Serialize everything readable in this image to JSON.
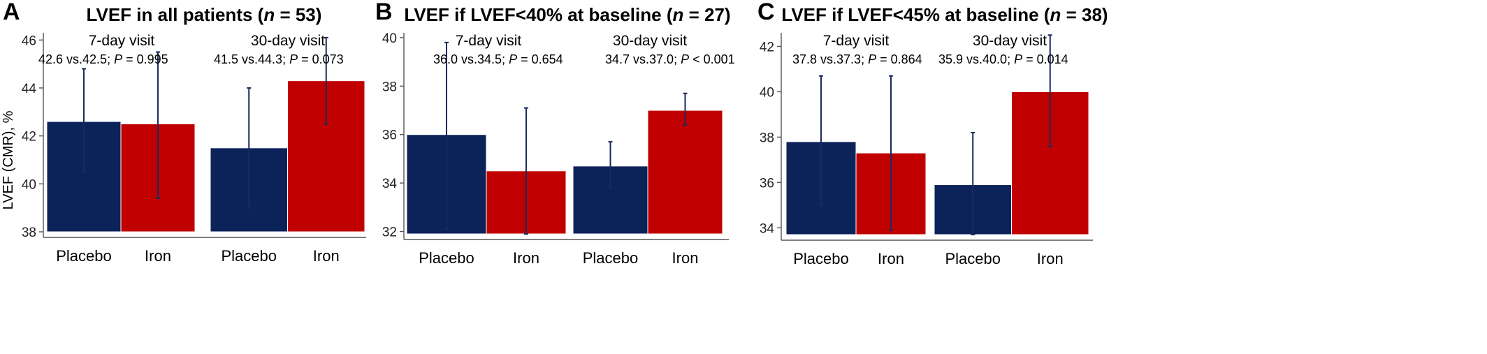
{
  "chart_data": [
    {
      "type": "bar",
      "panel_letter": "A",
      "title": {
        "prefix": "LVEF in all patients (",
        "italic": "n",
        "suffix": " = 53)"
      },
      "ylabel": "LVEF (CMR), %",
      "ylim": [
        38,
        46.3
      ],
      "yticks": [
        38,
        40,
        42,
        44,
        46
      ],
      "grid": false,
      "facets": [
        {
          "label": "7-day visit",
          "stat": {
            "prefix": "42.6 vs.42.5; ",
            "p_label": "P",
            "p_value": " = 0.995"
          },
          "categories": [
            "Placebo",
            "Iron"
          ],
          "values": [
            42.6,
            42.5
          ],
          "error_low": [
            40.5,
            39.4
          ],
          "error_high": [
            44.8,
            45.5
          ]
        },
        {
          "label": "30-day visit",
          "stat": {
            "prefix": "41.5 vs.44.3; ",
            "p_label": "P",
            "p_value": " = 0.073"
          },
          "categories": [
            "Placebo",
            "Iron"
          ],
          "values": [
            41.5,
            44.3
          ],
          "error_low": [
            39.0,
            42.5
          ],
          "error_high": [
            44.0,
            46.1
          ]
        }
      ]
    },
    {
      "type": "bar",
      "panel_letter": "B",
      "title": {
        "prefix": "LVEF if LVEF<40% at baseline (",
        "italic": "n",
        "suffix": " = 27)"
      },
      "ylabel": "",
      "ylim": [
        31.9,
        40.2
      ],
      "yticks": [
        32,
        34,
        36,
        38,
        40
      ],
      "grid": false,
      "facets": [
        {
          "label": "7-day visit",
          "stat": {
            "prefix": "36.0 vs.34.5; ",
            "p_label": "P",
            "p_value": " = 0.654"
          },
          "categories": [
            "Placebo",
            "Iron"
          ],
          "values": [
            36.0,
            34.5
          ],
          "error_low": [
            32.1,
            31.9
          ],
          "error_high": [
            39.8,
            37.1
          ]
        },
        {
          "label": "30-day visit",
          "stat": {
            "prefix": "34.7 vs.37.0; ",
            "p_label": "P",
            "p_value": " < 0.001"
          },
          "categories": [
            "Placebo",
            "Iron"
          ],
          "values": [
            34.7,
            37.0
          ],
          "error_low": [
            33.8,
            36.4
          ],
          "error_high": [
            35.7,
            37.7
          ]
        }
      ]
    },
    {
      "type": "bar",
      "panel_letter": "C",
      "title": {
        "prefix": "LVEF if LVEF<45% at baseline (",
        "italic": "n",
        "suffix": " = 38)"
      },
      "ylabel": "",
      "ylim": [
        33.7,
        42.6
      ],
      "yticks": [
        34,
        36,
        38,
        40,
        42
      ],
      "grid": false,
      "facets": [
        {
          "label": "7-day visit",
          "stat": {
            "prefix": "37.8 vs.37.3; ",
            "p_label": "P",
            "p_value": " = 0.864"
          },
          "categories": [
            "Placebo",
            "Iron"
          ],
          "values": [
            37.8,
            37.3
          ],
          "error_low": [
            35.0,
            33.9
          ],
          "error_high": [
            40.7,
            40.7
          ]
        },
        {
          "label": "30-day visit",
          "stat": {
            "prefix": "35.9 vs.40.0; ",
            "p_label": "P",
            "p_value": " = 0.014"
          },
          "categories": [
            "Placebo",
            "Iron"
          ],
          "values": [
            35.9,
            40.0
          ],
          "error_low": [
            33.7,
            37.6
          ],
          "error_high": [
            38.2,
            42.5
          ]
        }
      ]
    }
  ],
  "colors": {
    "placebo": "#0c2359",
    "iron": "#c00000",
    "error_bar": "#1a2a5c",
    "axis": "#555555",
    "facet_gap": "#ffffff"
  }
}
